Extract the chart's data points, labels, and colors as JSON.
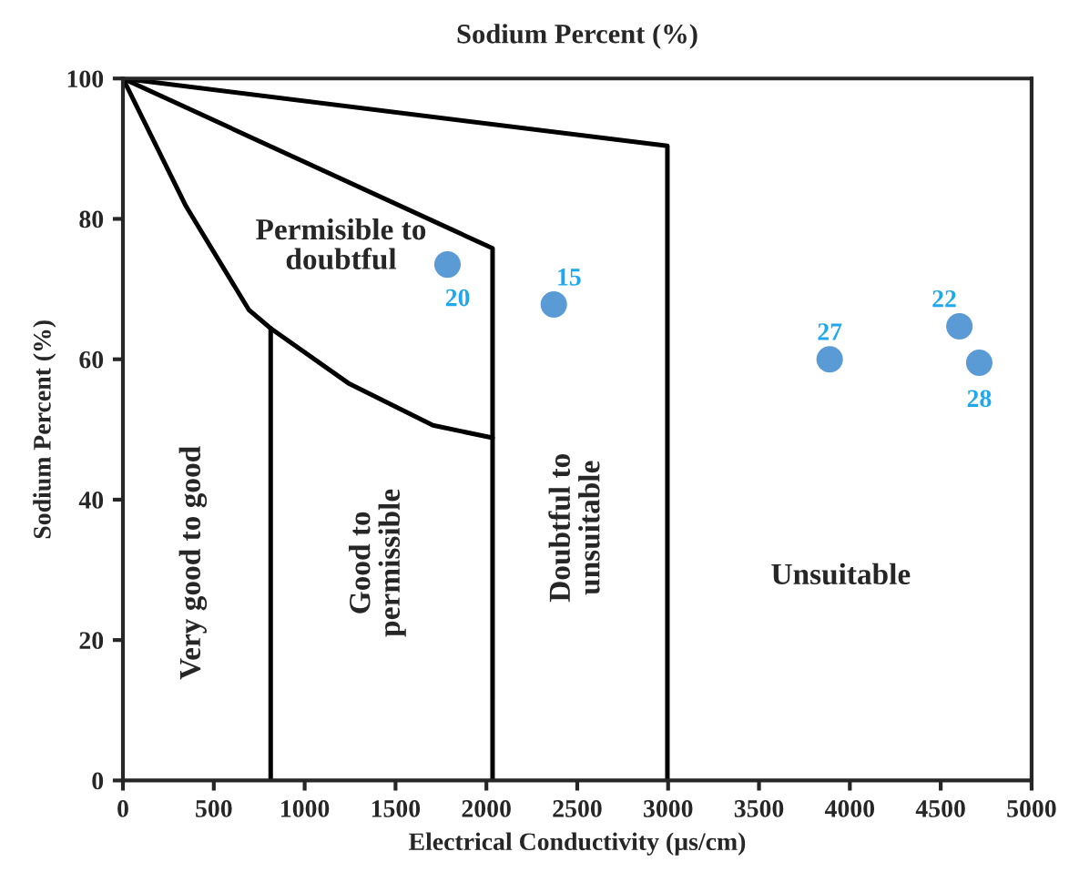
{
  "chart_data": {
    "type": "scatter",
    "title": "Sodium Percent (%)",
    "xlabel": "Electrical Conductivity (µs/cm)",
    "ylabel": "Sodium Percent (%)",
    "xlim": [
      0,
      5000
    ],
    "xticks": [
      0,
      500,
      1000,
      1500,
      2000,
      2500,
      3000,
      3500,
      4000,
      4500,
      5000
    ],
    "ylim": [
      0,
      100
    ],
    "yticks": [
      0,
      20,
      40,
      60,
      80,
      100
    ],
    "grid": false,
    "legend": false,
    "series": [
      {
        "type": "line",
        "color": "#000000",
        "marker": "none",
        "x": [
          0,
          2996,
          2996
        ],
        "values": [
          100,
          90.4,
          0
        ]
      },
      {
        "type": "line",
        "color": "#000000",
        "marker": "none",
        "x": [
          0,
          2034,
          2034
        ],
        "values": [
          100,
          75.8,
          0
        ]
      },
      {
        "type": "line",
        "color": "#000000",
        "marker": "none",
        "x": [
          0,
          347,
          694,
          813,
          1240,
          1706,
          2034
        ],
        "values": [
          100,
          81.8,
          67,
          64.4,
          56.6,
          50.6,
          48.8
        ]
      },
      {
        "type": "line",
        "color": "#000000",
        "marker": "none",
        "x": [
          813,
          813
        ],
        "values": [
          64.4,
          0
        ]
      },
      {
        "color": "#5b9bd5",
        "marker": "circle",
        "x": [
          1786,
          2371,
          3889,
          4603,
          4712
        ],
        "values": [
          73.5,
          67.8,
          60,
          64.7,
          59.5
        ]
      }
    ],
    "annotations": [
      "Permisible to\ndoubtful",
      "Very good to good",
      "Good to\npermissible",
      "Doubtful to\nunsuitable",
      "Unsuitable",
      {
        "text": "20",
        "x": 1786,
        "y": 73.5
      },
      {
        "text": "15",
        "x": 2371,
        "y": 67.8
      },
      {
        "text": "27",
        "x": 3889,
        "y": 60
      },
      {
        "text": "22",
        "x": 4603,
        "y": 64.7
      },
      {
        "text": "28",
        "x": 4712,
        "y": 59.5
      }
    ]
  }
}
